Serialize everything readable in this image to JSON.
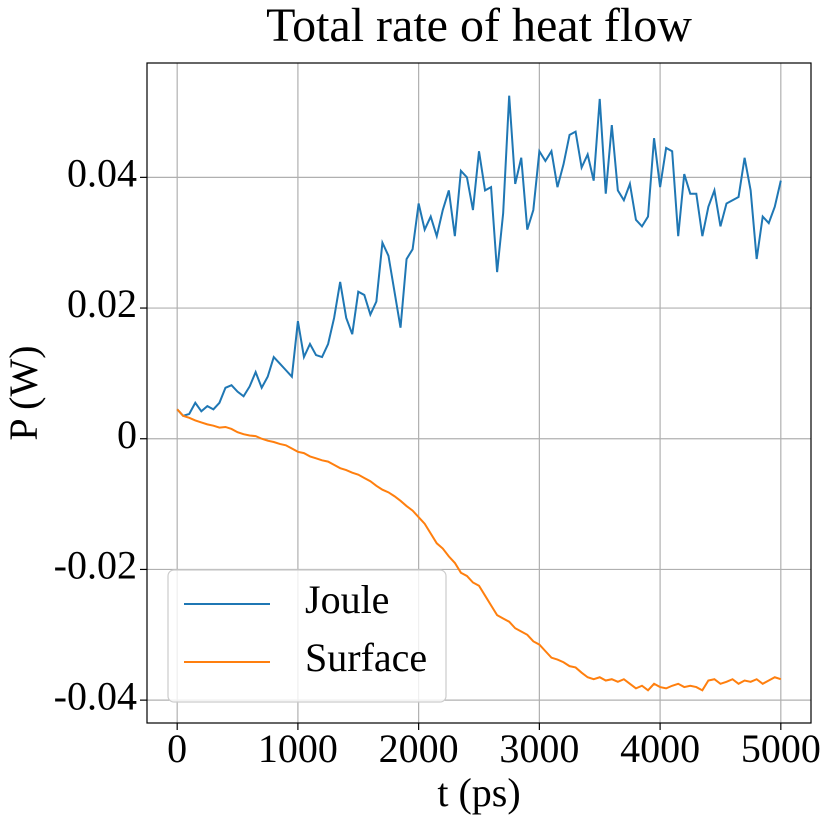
{
  "chart_data": {
    "type": "line",
    "title": "Total rate of heat flow",
    "xlabel": "t (ps)",
    "ylabel": "P (W)",
    "x": [
      0,
      50,
      100,
      150,
      200,
      250,
      300,
      350,
      400,
      450,
      500,
      550,
      600,
      650,
      700,
      750,
      800,
      850,
      900,
      950,
      1000,
      1050,
      1100,
      1150,
      1200,
      1250,
      1300,
      1350,
      1400,
      1450,
      1500,
      1550,
      1600,
      1650,
      1700,
      1750,
      1800,
      1850,
      1900,
      1950,
      2000,
      2050,
      2100,
      2150,
      2200,
      2250,
      2300,
      2350,
      2400,
      2450,
      2500,
      2550,
      2600,
      2650,
      2700,
      2750,
      2800,
      2850,
      2900,
      2950,
      3000,
      3050,
      3100,
      3150,
      3200,
      3250,
      3300,
      3350,
      3400,
      3450,
      3500,
      3550,
      3600,
      3650,
      3700,
      3750,
      3800,
      3850,
      3900,
      3950,
      4000,
      4050,
      4100,
      4150,
      4200,
      4250,
      4300,
      4350,
      4400,
      4450,
      4500,
      4550,
      4600,
      4650,
      4700,
      4750,
      4800,
      4850,
      4900,
      4950,
      5000
    ],
    "series": [
      {
        "name": "Joule",
        "color": "#1f77b4",
        "values": [
          0.0045,
          0.0035,
          0.0038,
          0.0055,
          0.0042,
          0.005,
          0.0045,
          0.0055,
          0.0078,
          0.0082,
          0.0072,
          0.0065,
          0.008,
          0.0102,
          0.0078,
          0.0095,
          0.0125,
          0.0115,
          0.0105,
          0.0095,
          0.018,
          0.0125,
          0.0145,
          0.0128,
          0.0125,
          0.0145,
          0.0185,
          0.024,
          0.0185,
          0.016,
          0.0225,
          0.022,
          0.019,
          0.021,
          0.03,
          0.028,
          0.0225,
          0.017,
          0.0275,
          0.029,
          0.036,
          0.032,
          0.034,
          0.031,
          0.035,
          0.038,
          0.031,
          0.041,
          0.04,
          0.035,
          0.044,
          0.038,
          0.0385,
          0.0255,
          0.0345,
          0.0525,
          0.039,
          0.043,
          0.032,
          0.035,
          0.044,
          0.0425,
          0.044,
          0.0385,
          0.042,
          0.0465,
          0.047,
          0.0415,
          0.0435,
          0.0395,
          0.052,
          0.0375,
          0.048,
          0.038,
          0.0365,
          0.039,
          0.0335,
          0.0325,
          0.034,
          0.046,
          0.0385,
          0.0445,
          0.044,
          0.031,
          0.0405,
          0.0375,
          0.0375,
          0.031,
          0.0355,
          0.038,
          0.0325,
          0.036,
          0.0365,
          0.037,
          0.043,
          0.038,
          0.0275,
          0.034,
          0.033,
          0.0355,
          0.0395
        ]
      },
      {
        "name": "Surface",
        "color": "#ff7f0e",
        "values": [
          0.0045,
          0.0035,
          0.0032,
          0.0028,
          0.0025,
          0.0022,
          0.002,
          0.0017,
          0.0018,
          0.0015,
          0.001,
          0.0007,
          0.0005,
          0.0004,
          0.0,
          -0.0003,
          -0.0005,
          -0.0008,
          -0.001,
          -0.0015,
          -0.002,
          -0.0022,
          -0.0027,
          -0.003,
          -0.0033,
          -0.0035,
          -0.004,
          -0.0045,
          -0.0048,
          -0.0052,
          -0.0055,
          -0.006,
          -0.0065,
          -0.0072,
          -0.0078,
          -0.0082,
          -0.0088,
          -0.0095,
          -0.0103,
          -0.011,
          -0.012,
          -0.013,
          -0.0145,
          -0.016,
          -0.0168,
          -0.018,
          -0.019,
          -0.0205,
          -0.021,
          -0.022,
          -0.0225,
          -0.024,
          -0.0255,
          -0.027,
          -0.0275,
          -0.028,
          -0.029,
          -0.0295,
          -0.03,
          -0.031,
          -0.0315,
          -0.0325,
          -0.0335,
          -0.0338,
          -0.0342,
          -0.0348,
          -0.035,
          -0.0358,
          -0.0365,
          -0.0368,
          -0.0365,
          -0.037,
          -0.0368,
          -0.0372,
          -0.0368,
          -0.0375,
          -0.0382,
          -0.0378,
          -0.0385,
          -0.0375,
          -0.038,
          -0.0382,
          -0.0378,
          -0.0375,
          -0.038,
          -0.0378,
          -0.038,
          -0.0385,
          -0.037,
          -0.0368,
          -0.0375,
          -0.0372,
          -0.0368,
          -0.0375,
          -0.037,
          -0.0372,
          -0.0368,
          -0.0375,
          -0.037,
          -0.0365,
          -0.0368
        ]
      }
    ],
    "xlim": [
      -250,
      5250
    ],
    "xticks": [
      0,
      1000,
      2000,
      3000,
      4000,
      5000
    ],
    "ylim": [
      -0.0435,
      0.0575
    ],
    "yticks": [
      -0.04,
      -0.02,
      0,
      0.02,
      0.04
    ],
    "grid": true,
    "legend": "lower left"
  }
}
